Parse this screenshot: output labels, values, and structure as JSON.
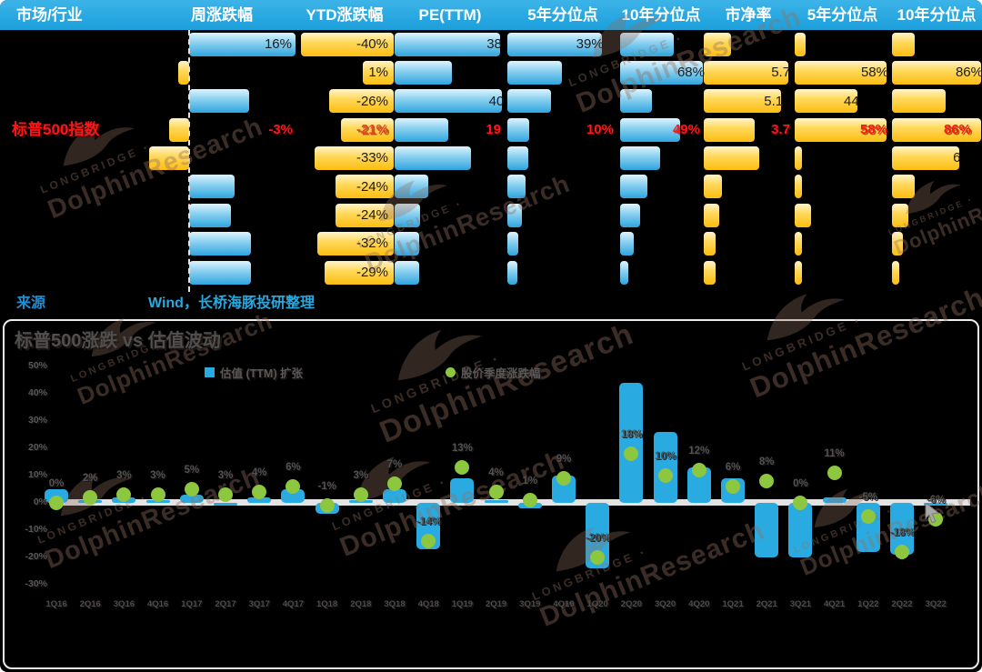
{
  "watermark": {
    "brand_small": "LONGBRIDGE",
    "brand_large": "DolphinResearch"
  },
  "table": {
    "headers": [
      "市场/行业",
      "周涨跌幅",
      "YTD涨跌幅",
      "PE(TTM)",
      "5年分位点",
      "10年分位点",
      "市净率",
      "5年分位点",
      "10年分位点"
    ],
    "highlight_row_name": "标普500指数",
    "rows": [
      {
        "name": "",
        "hl": false,
        "week": {
          "label": "16%",
          "pct": 100
        },
        "ytd": {
          "label": "-40%",
          "pct": 96
        },
        "pe": {
          "label": "38",
          "pct": 95
        },
        "p5a": {
          "label": "39%",
          "pct": 85
        },
        "p10a": {
          "label": "",
          "pct": 65
        },
        "pb": {
          "label": "",
          "pct": 30
        },
        "p5b": {
          "label": "",
          "pct": 12
        },
        "p10b": {
          "label": "",
          "pct": 25
        }
      },
      {
        "name": "",
        "hl": false,
        "week": {
          "label": "",
          "pct": -10
        },
        "ytd": {
          "label": "1%",
          "pct": 32
        },
        "pe": {
          "label": "",
          "pct": 52
        },
        "p5a": {
          "label": "",
          "pct": 49
        },
        "p10a": {
          "label": "68%",
          "pct": 100
        },
        "pb": {
          "label": "5.7",
          "pct": 94
        },
        "p5b": {
          "label": "58%",
          "pct": 100
        },
        "p10b": {
          "label": "86%",
          "pct": 100
        }
      },
      {
        "name": "",
        "hl": false,
        "week": {
          "label": "",
          "pct": 56
        },
        "ytd": {
          "label": "-26%",
          "pct": 67
        },
        "pe": {
          "label": "40",
          "pct": 97
        },
        "p5a": {
          "label": "",
          "pct": 39
        },
        "p10a": {
          "label": "",
          "pct": 38
        },
        "pb": {
          "label": "5.1",
          "pct": 86
        },
        "p5b": {
          "label": "44",
          "pct": 68
        },
        "p10b": {
          "label": "",
          "pct": 60
        }
      },
      {
        "name": "标普500指数",
        "hl": true,
        "week": {
          "label": "-3%",
          "pct": -19
        },
        "ytd": {
          "label": "-21%",
          "pct": 55
        },
        "pe": {
          "label": "19",
          "pct": 48
        },
        "p5a": {
          "label": "10%",
          "pct": 20
        },
        "p10a": {
          "label": "49%",
          "pct": 72
        },
        "pb": {
          "label": "3.7",
          "pct": 57
        },
        "p5b": {
          "label": "58%",
          "pct": 100
        },
        "p10b": {
          "label": "86%",
          "pct": 100
        }
      },
      {
        "name": "",
        "hl": false,
        "week": {
          "label": "",
          "pct": -38
        },
        "ytd": {
          "label": "-33%",
          "pct": 82
        },
        "pe": {
          "label": "",
          "pct": 69
        },
        "p5a": {
          "label": "",
          "pct": 19
        },
        "p10a": {
          "label": "",
          "pct": 48
        },
        "pb": {
          "label": "",
          "pct": 62
        },
        "p5b": {
          "label": "",
          "pct": 8
        },
        "p10b": {
          "label": "6",
          "pct": 75
        }
      },
      {
        "name": "",
        "hl": false,
        "week": {
          "label": "",
          "pct": 43
        },
        "ytd": {
          "label": "-24%",
          "pct": 60
        },
        "pe": {
          "label": "",
          "pct": 30
        },
        "p5a": {
          "label": "",
          "pct": 16
        },
        "p10a": {
          "label": "",
          "pct": 33
        },
        "pb": {
          "label": "",
          "pct": 20
        },
        "p5b": {
          "label": "",
          "pct": 8
        },
        "p10b": {
          "label": "",
          "pct": 25
        }
      },
      {
        "name": "",
        "hl": false,
        "week": {
          "label": "",
          "pct": 39
        },
        "ytd": {
          "label": "-24%",
          "pct": 60
        },
        "pe": {
          "label": "",
          "pct": 23
        },
        "p5a": {
          "label": "",
          "pct": 13
        },
        "p10a": {
          "label": "",
          "pct": 24
        },
        "pb": {
          "label": "",
          "pct": 17
        },
        "p5b": {
          "label": "",
          "pct": 18
        },
        "p10b": {
          "label": "",
          "pct": 18
        }
      },
      {
        "name": "",
        "hl": false,
        "week": {
          "label": "",
          "pct": 58
        },
        "ytd": {
          "label": "-32%",
          "pct": 79
        },
        "pe": {
          "label": "",
          "pct": 22
        },
        "p5a": {
          "label": "",
          "pct": 10
        },
        "p10a": {
          "label": "",
          "pct": 17
        },
        "pb": {
          "label": "",
          "pct": 13
        },
        "p5b": {
          "label": "",
          "pct": 8
        },
        "p10b": {
          "label": "",
          "pct": 12
        }
      },
      {
        "name": "",
        "hl": false,
        "week": {
          "label": "",
          "pct": 58
        },
        "ytd": {
          "label": "-29%",
          "pct": 72
        },
        "pe": {
          "label": "",
          "pct": 22
        },
        "p5a": {
          "label": "",
          "pct": 9
        },
        "p10a": {
          "label": "",
          "pct": 10
        },
        "pb": {
          "label": "",
          "pct": 13
        },
        "p5b": {
          "label": "",
          "pct": 8
        },
        "p10b": {
          "label": "",
          "pct": 8
        }
      }
    ],
    "source_label": "来源",
    "source_text": "Wind，长桥海豚投研整理",
    "colors": {
      "header_bg": "#29A8E1",
      "blue_bar": "#2FA5DE",
      "gold_bar": "#FFC20E",
      "highlight_red": "#FF1616"
    }
  },
  "chart_data": {
    "type": "bar",
    "title": "标普500涨跌 vs 估值波动",
    "categories": [
      "1Q16",
      "2Q16",
      "3Q16",
      "4Q16",
      "1Q17",
      "2Q17",
      "3Q17",
      "4Q17",
      "1Q18",
      "2Q18",
      "3Q18",
      "4Q18",
      "1Q19",
      "2Q19",
      "3Q19",
      "4Q19",
      "1Q20",
      "2Q20",
      "3Q20",
      "4Q20",
      "1Q21",
      "2Q21",
      "3Q21",
      "4Q21",
      "1Q22",
      "2Q22",
      "3Q22"
    ],
    "series": [
      {
        "name": "估值 (TTM) 扩张",
        "type": "bar",
        "color": "#29ABE2",
        "values": [
          5,
          1,
          2,
          1,
          3,
          -1,
          2,
          5,
          -4,
          1,
          5,
          -17,
          9,
          1,
          -2,
          10,
          -24,
          44,
          26,
          13,
          9,
          -20,
          -20,
          2,
          -18,
          -19,
          -1
        ]
      },
      {
        "name": "股价季度涨跌幅",
        "type": "scatter",
        "color": "#8DC63F",
        "values": [
          0,
          2,
          3,
          3,
          5,
          3,
          4,
          6,
          -1,
          3,
          7,
          -14,
          13,
          4,
          1,
          9,
          -20,
          18,
          10,
          12,
          6,
          8,
          0,
          11,
          -5,
          -18,
          -6
        ],
        "labels": [
          "0%",
          "2%",
          "3%",
          "3%",
          "5%",
          "3%",
          "4%",
          "6%",
          "-1%",
          "3%",
          "7%",
          "-14%",
          "13%",
          "4%",
          "1%",
          "9%",
          "-20%",
          "18%",
          "10%",
          "12%",
          "6%",
          "8%",
          "0%",
          "11%",
          "-5%",
          "-18%",
          "-6%"
        ]
      }
    ],
    "ylim": [
      -30,
      50
    ],
    "ytick_labels": [
      "50%",
      "40%",
      "30%",
      "20%",
      "10%",
      "0%",
      "-10%",
      "-20%",
      "-30%"
    ],
    "grid": "zero-line-only",
    "legend_position": "top"
  }
}
